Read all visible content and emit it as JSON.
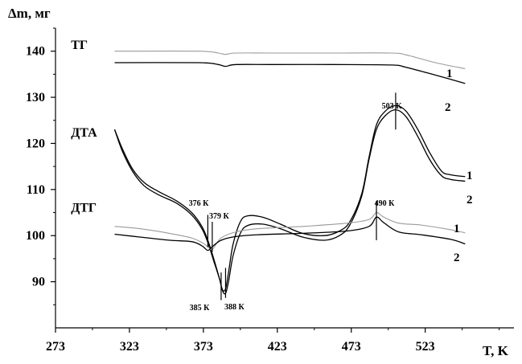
{
  "chart_data": {
    "type": "line",
    "ylabel": "Δm, мг",
    "xlabel": "T, K",
    "xlim": [
      273,
      583
    ],
    "ylim": [
      80,
      145
    ],
    "x_ticks": [
      273,
      323,
      373,
      423,
      473,
      523
    ],
    "y_ticks": [
      90,
      100,
      110,
      120,
      130,
      140
    ],
    "grid": false,
    "curve_labels": [
      {
        "text": "ТГ",
        "x": 290,
        "y": 141.5
      },
      {
        "text": "ДТА",
        "x": 290,
        "y": 122.5
      },
      {
        "text": "ДТГ",
        "x": 290,
        "y": 106.2
      }
    ],
    "series": [
      {
        "group": "ТГ",
        "name": "1",
        "color": "#9a9a9a",
        "x": [
          313,
          370,
          383,
          388,
          395,
          420,
          460,
          500,
          510,
          530,
          550
        ],
        "y": [
          140.0,
          140.0,
          139.6,
          139.3,
          139.6,
          139.6,
          139.6,
          139.6,
          139.2,
          137.5,
          136.2
        ]
      },
      {
        "group": "ТГ",
        "name": "2",
        "color": "#000000",
        "x": [
          313,
          370,
          383,
          388,
          395,
          420,
          460,
          500,
          510,
          530,
          550
        ],
        "y": [
          137.5,
          137.5,
          137.1,
          136.7,
          137.1,
          137.1,
          137.1,
          137.0,
          136.5,
          134.8,
          133.0
        ]
      },
      {
        "group": "ДТА",
        "name": "1",
        "color": "#000000",
        "x": [
          313,
          318,
          325,
          333,
          343,
          355,
          365,
          372,
          376,
          380,
          384,
          386,
          388,
          390,
          393,
          398,
          403,
          413,
          425,
          440,
          455,
          465,
          472,
          480,
          485,
          490,
          496,
          503,
          510,
          518,
          526,
          534,
          540,
          550
        ],
        "y": [
          123.0,
          119.0,
          114.5,
          111.5,
          109.5,
          107.5,
          105.0,
          102.0,
          99.0,
          95.0,
          90.5,
          88.2,
          88.5,
          92.0,
          98.0,
          103.0,
          104.3,
          104.0,
          102.5,
          100.5,
          100.0,
          101.0,
          103.0,
          109.0,
          117.0,
          124.0,
          127.0,
          128.2,
          127.0,
          123.0,
          118.0,
          114.0,
          113.2,
          112.8
        ]
      },
      {
        "group": "ДТА",
        "name": "2",
        "color": "#000000",
        "x": [
          313,
          318,
          325,
          333,
          343,
          355,
          365,
          372,
          376,
          380,
          384,
          386,
          388,
          390,
          393,
          398,
          403,
          413,
          425,
          440,
          455,
          465,
          472,
          480,
          485,
          490,
          496,
          503,
          510,
          518,
          526,
          534,
          540,
          550
        ],
        "y": [
          123.0,
          118.5,
          114.0,
          110.8,
          108.8,
          107.0,
          104.5,
          101.5,
          98.5,
          94.5,
          90.5,
          88.0,
          87.5,
          90.0,
          95.5,
          100.5,
          102.2,
          102.5,
          101.5,
          99.7,
          99.0,
          100.0,
          102.3,
          108.5,
          116.5,
          123.0,
          126.0,
          127.3,
          125.8,
          121.5,
          116.5,
          113.0,
          112.2,
          111.8
        ]
      },
      {
        "group": "ДТГ",
        "name": "1",
        "color": "#9a9a9a",
        "x": [
          313,
          330,
          350,
          365,
          372,
          376,
          379,
          385,
          395,
          410,
          440,
          470,
          485,
          490,
          495,
          505,
          520,
          540,
          550
        ],
        "y": [
          102.0,
          101.5,
          100.5,
          99.5,
          98.5,
          97.6,
          97.0,
          99.5,
          100.8,
          101.5,
          102.0,
          102.7,
          103.5,
          105.0,
          104.0,
          102.7,
          102.3,
          101.3,
          100.6
        ]
      },
      {
        "group": "ДТГ",
        "name": "2",
        "color": "#000000",
        "x": [
          313,
          330,
          350,
          365,
          372,
          376,
          379,
          385,
          395,
          410,
          440,
          470,
          485,
          490,
          495,
          505,
          520,
          540,
          550
        ],
        "y": [
          100.3,
          99.7,
          99.0,
          98.7,
          97.8,
          96.8,
          97.6,
          99.0,
          99.8,
          100.2,
          100.5,
          101.0,
          102.0,
          104.0,
          102.8,
          100.8,
          100.2,
          99.2,
          98.2
        ]
      }
    ],
    "series_end_labels": [
      {
        "group": "ТГ",
        "labels": [
          "1",
          "2"
        ]
      },
      {
        "group": "ДТА",
        "labels": [
          "1",
          "2"
        ]
      },
      {
        "group": "ДТГ",
        "labels": [
          "1",
          "2"
        ]
      }
    ],
    "annotations": [
      {
        "text": "376 К",
        "x": 376,
        "y1": 97.5,
        "y2": 104.5
      },
      {
        "text": "379 К",
        "x": 379,
        "y1": 96.5,
        "y2": 103.0
      },
      {
        "text": "385 К",
        "x": 385,
        "y1": 86.0,
        "y2": 92.0
      },
      {
        "text": "388 К",
        "x": 388,
        "y1": 86.5,
        "y2": 93.0
      },
      {
        "text": "490 К",
        "x": 490,
        "y1": 99.0,
        "y2": 107.5
      },
      {
        "text": "503 К",
        "x": 503,
        "y1": 123.0,
        "y2": 131.0
      }
    ]
  }
}
